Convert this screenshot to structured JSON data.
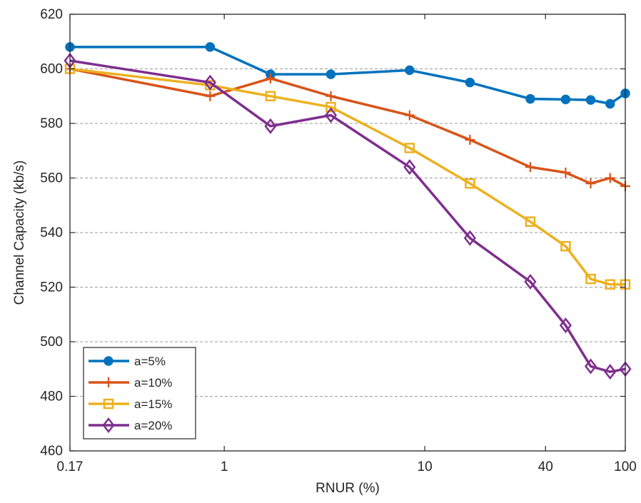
{
  "chart_data": {
    "type": "line",
    "title": "",
    "xlabel": "RNUR (%)",
    "ylabel": "Channel Capacity (kb/s)",
    "x_scale": "log",
    "xlim": [
      0.17,
      100
    ],
    "ylim": [
      460,
      620
    ],
    "x_ticks": [
      0.17,
      1,
      10,
      40,
      100
    ],
    "x_tick_labels": [
      "0.17",
      "1",
      "10",
      "40",
      "100"
    ],
    "y_ticks": [
      460,
      480,
      500,
      520,
      540,
      560,
      580,
      600,
      620
    ],
    "y_tick_labels": [
      "460",
      "480",
      "500",
      "520",
      "540",
      "560",
      "580",
      "600",
      "620"
    ],
    "grid": "horizontal dashed",
    "legend_position": "bottom-left",
    "x": [
      0.17,
      0.85,
      1.7,
      3.4,
      8.4,
      16.8,
      33.6,
      50.4,
      67.2,
      84,
      100
    ],
    "series": [
      {
        "name": "a=5%",
        "marker": "circle",
        "color": "#0072bd",
        "values": [
          608,
          608,
          598,
          598,
          599.5,
          595,
          589,
          588.8,
          588.6,
          587.2,
          591
        ]
      },
      {
        "name": "a=10%",
        "marker": "plus",
        "color": "#d95319",
        "values": [
          600,
          590,
          596.5,
          590,
          583,
          574,
          564,
          562,
          558,
          560,
          557
        ]
      },
      {
        "name": "a=15%",
        "marker": "square",
        "color": "#edb120",
        "values": [
          600,
          594,
          590,
          586,
          571,
          558,
          544,
          535,
          523,
          521,
          521
        ]
      },
      {
        "name": "a=20%",
        "marker": "diamond",
        "color": "#7e2f8e",
        "values": [
          603,
          595,
          579,
          583,
          564,
          538,
          522,
          506,
          491,
          489,
          490
        ]
      }
    ]
  }
}
